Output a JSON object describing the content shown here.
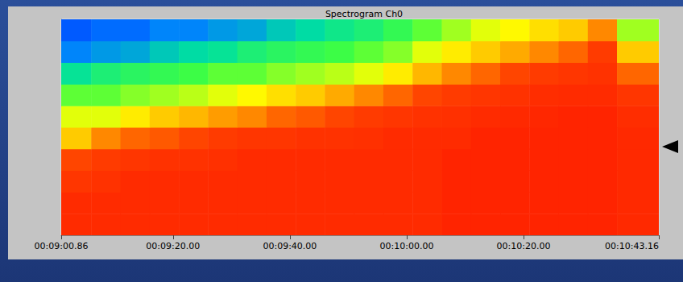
{
  "chart_data": {
    "type": "heatmap",
    "title": "Spectrogram Ch0",
    "xlim": [
      540.86,
      643.16
    ],
    "xticks": [
      {
        "value": 540.86,
        "label": "00:09:00.86"
      },
      {
        "value": 560,
        "label": "00:09:20.00"
      },
      {
        "value": 580,
        "label": "00:09:40.00"
      },
      {
        "value": 600,
        "label": "00:10:00.00"
      },
      {
        "value": 620,
        "label": "00:10:20.00"
      },
      {
        "value": 643.16,
        "label": "00:10:43.16"
      }
    ],
    "ylim": [
      0,
      10
    ],
    "tick_labels": "x",
    "grid": false,
    "x_edges": [
      540.86,
      546,
      551,
      556,
      561,
      566,
      571,
      576,
      581,
      586,
      591,
      596,
      601,
      606,
      611,
      616,
      621,
      626,
      631,
      636,
      643.16
    ],
    "y_edges": [
      0,
      1,
      2,
      3,
      4,
      5,
      6,
      7,
      8,
      9,
      10
    ],
    "color_range": [
      0,
      100
    ],
    "values": [
      [
        95,
        95,
        95,
        95,
        95,
        95,
        95,
        95,
        95,
        95,
        95,
        95,
        95,
        98,
        98,
        98,
        98,
        98,
        98,
        96
      ],
      [
        95,
        95,
        95,
        95,
        95,
        95,
        95,
        95,
        95,
        95,
        95,
        95,
        95,
        98,
        98,
        98,
        98,
        98,
        98,
        96
      ],
      [
        90,
        92,
        95,
        95,
        95,
        95,
        95,
        95,
        95,
        95,
        95,
        95,
        95,
        98,
        98,
        98,
        98,
        98,
        98,
        96
      ],
      [
        85,
        88,
        90,
        92,
        92,
        93,
        95,
        95,
        95,
        95,
        95,
        95,
        95,
        98,
        98,
        98,
        98,
        98,
        98,
        96
      ],
      [
        65,
        75,
        80,
        82,
        85,
        88,
        90,
        90,
        92,
        92,
        93,
        95,
        95,
        95,
        98,
        98,
        98,
        98,
        98,
        96
      ],
      [
        55,
        55,
        60,
        65,
        68,
        72,
        75,
        80,
        82,
        85,
        88,
        90,
        92,
        93,
        95,
        96,
        97,
        98,
        98,
        94
      ],
      [
        45,
        45,
        48,
        50,
        52,
        55,
        58,
        62,
        65,
        70,
        75,
        80,
        85,
        88,
        90,
        92,
        94,
        95,
        95,
        90
      ],
      [
        30,
        35,
        38,
        40,
        42,
        45,
        45,
        48,
        50,
        52,
        55,
        60,
        68,
        75,
        80,
        85,
        88,
        90,
        92,
        80
      ],
      [
        15,
        18,
        20,
        25,
        28,
        30,
        35,
        38,
        40,
        42,
        45,
        48,
        55,
        60,
        65,
        70,
        75,
        80,
        88,
        65
      ],
      [
        10,
        12,
        12,
        15,
        15,
        18,
        20,
        25,
        28,
        32,
        35,
        40,
        45,
        50,
        55,
        58,
        62,
        65,
        75,
        50
      ]
    ]
  }
}
